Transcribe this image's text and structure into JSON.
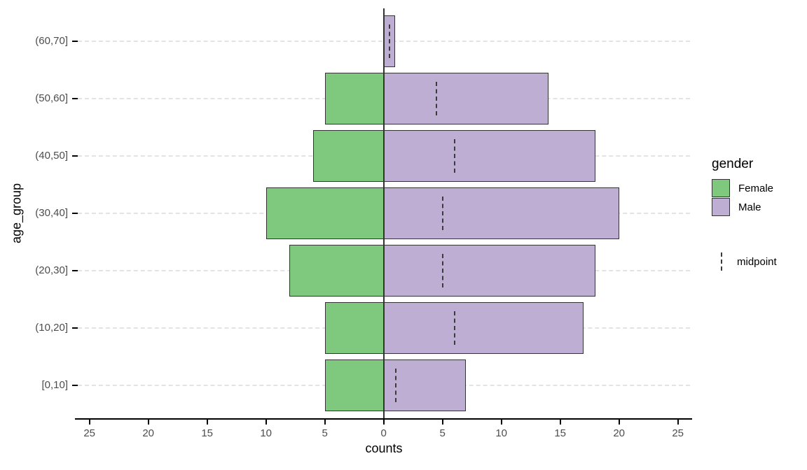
{
  "chart_data": {
    "type": "bar",
    "variant": "population-pyramid-diverging",
    "title": "",
    "xlabel": "counts",
    "ylabel": "age_group",
    "category_order": "top-to-bottom",
    "categories": [
      "(60,70]",
      "(50,60]",
      "(40,50]",
      "(30,40]",
      "(20,30]",
      "(10,20]",
      "[0,10]"
    ],
    "series": [
      {
        "name": "Female",
        "side": "left",
        "color": "#7FC97F",
        "values": [
          0,
          5,
          6,
          10,
          8,
          5,
          5
        ]
      },
      {
        "name": "Male",
        "side": "right",
        "color": "#BEAED4",
        "values": [
          1,
          14,
          18,
          20,
          18,
          17,
          7
        ]
      }
    ],
    "midpoints": {
      "label": "midpoint",
      "values": [
        0.5,
        4.5,
        6,
        5,
        5,
        6,
        1
      ]
    },
    "x_ticks": [
      {
        "value": -25,
        "label": "25"
      },
      {
        "value": -20,
        "label": "20"
      },
      {
        "value": -15,
        "label": "15"
      },
      {
        "value": -10,
        "label": "10"
      },
      {
        "value": -5,
        "label": "5"
      },
      {
        "value": 0,
        "label": "0"
      },
      {
        "value": 5,
        "label": "5"
      },
      {
        "value": 10,
        "label": "10"
      },
      {
        "value": 15,
        "label": "15"
      },
      {
        "value": 20,
        "label": "20"
      },
      {
        "value": 25,
        "label": "25"
      }
    ],
    "xlim": [
      -26,
      26
    ],
    "grid": "horizontal-dashed",
    "legend_position": "right"
  },
  "legend": {
    "title": "gender",
    "items": [
      {
        "label": "Female",
        "color": "#7FC97F"
      },
      {
        "label": "Male",
        "color": "#BEAED4"
      }
    ],
    "midpoint": {
      "label": "midpoint"
    }
  },
  "colors": {
    "background": "#FFFFFF",
    "female": "#7FC97F",
    "male": "#BEAED4",
    "bar_border": "#333333",
    "zero_line": "#333333",
    "midpoint_line": "#3B3B3B",
    "gridline": "#E3E3E3",
    "axis_line": "#000000",
    "tick_text": "#4D4D4D",
    "title_text": "#000000"
  }
}
